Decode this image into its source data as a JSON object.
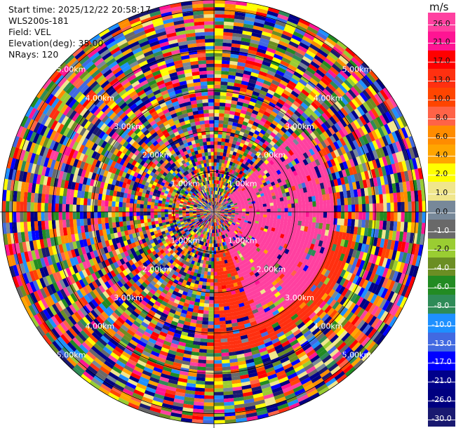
{
  "header": {
    "start_time": "Start time: 2025/12/22 20:58:17",
    "instrument": "WLS200s-181",
    "field": "Field: VEL",
    "elevation": "Elevation(deg): 35.00",
    "nrays": "NRays: 120"
  },
  "colorbar": {
    "unit": "m/s",
    "bins": [
      {
        "label": "26.0",
        "color": "#ff40a0"
      },
      {
        "label": "21.0",
        "color": "#ff1493"
      },
      {
        "label": "17.0",
        "color": "#ff0000"
      },
      {
        "label": "13.0",
        "color": "#ff3010"
      },
      {
        "label": "10.0",
        "color": "#ff4500"
      },
      {
        "label": "8.0",
        "color": "#ff6347"
      },
      {
        "label": "6.0",
        "color": "#ff8c00"
      },
      {
        "label": "4.0",
        "color": "#ffa500"
      },
      {
        "label": "2.0",
        "color": "#ffff00"
      },
      {
        "label": "1.0",
        "color": "#f0e68c"
      },
      {
        "label": "0.0",
        "color": "#778899"
      },
      {
        "label": "-1.0",
        "color": "#696969"
      },
      {
        "label": "-2.0",
        "color": "#9acd32"
      },
      {
        "label": "-4.0",
        "color": "#6b8e23"
      },
      {
        "label": "-6.0",
        "color": "#228b22"
      },
      {
        "label": "-8.0",
        "color": "#2e8b57"
      },
      {
        "label": "-10.0",
        "color": "#1e90ff"
      },
      {
        "label": "-13.0",
        "color": "#4169e1"
      },
      {
        "label": "-17.0",
        "color": "#0000ff"
      },
      {
        "label": "-21.0",
        "color": "#00008b"
      },
      {
        "label": "-26.0",
        "color": "#000080"
      },
      {
        "label": "-30.0",
        "color": "#191970"
      }
    ]
  },
  "chart_data": {
    "type": "heatmap",
    "projection": "polar PPI",
    "field": "VEL",
    "nrays": 120,
    "range_rings_km": [
      1,
      2,
      3,
      4,
      5
    ],
    "ring_labels": [
      "1.00km",
      "2.00km",
      "3.00km",
      "4.00km",
      "5.00km"
    ],
    "dominant_regions": [
      {
        "description": "strong positive velocity",
        "azimuth_range_deg": [
          45,
          160
        ],
        "range_km": [
          0.5,
          3.0
        ],
        "value_ms": 26.0
      },
      {
        "description": "positive velocity",
        "azimuth_range_deg": [
          100,
          180
        ],
        "range_km": [
          1.0,
          3.5
        ],
        "value_ms": 13.0
      }
    ]
  }
}
